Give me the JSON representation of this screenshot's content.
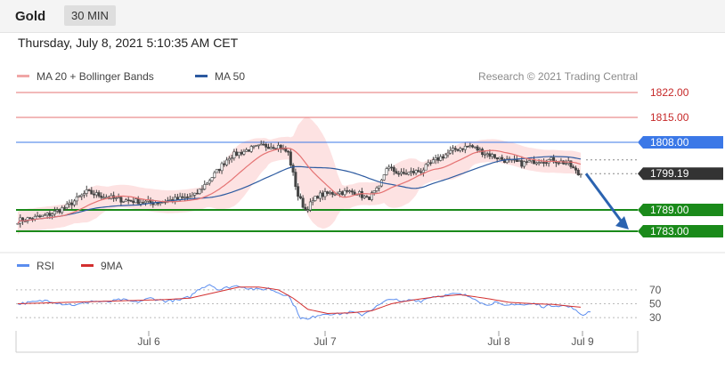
{
  "header": {
    "symbol": "Gold",
    "timeframe": "30 MIN"
  },
  "datetime": "Thursday, July 8, 2021 5:10:35 AM CET",
  "legend": {
    "ma20_label": "MA 20 + Bollinger Bands",
    "ma50_label": "MA 50",
    "credit": "Research © 2021 Trading Central",
    "rsi_label": "RSI",
    "ma9_label": "9MA"
  },
  "colors": {
    "ma20": "#e57373",
    "bollinger_fill": "#fde2e2",
    "ma50": "#2c5aa0",
    "resistance": "#e57373",
    "pivot": "#3b78e7",
    "support": "#1a8a1a",
    "current": "#333333",
    "arrow": "#2b63b0",
    "candle": "#444444",
    "rsi": "#5b8def",
    "rsi_ma": "#d32f2f"
  },
  "chart_data": [
    {
      "type": "candlestick",
      "title": "Gold",
      "timeframe": "30 MIN",
      "x_ticks": [
        "Jul 6",
        "Jul 7",
        "Jul 8",
        "Jul 9"
      ],
      "ylim": [
        1781,
        1824
      ],
      "levels": [
        {
          "value": 1822.0,
          "label": "1822.00",
          "kind": "resistance"
        },
        {
          "value": 1815.0,
          "label": "1815.00",
          "kind": "resistance"
        },
        {
          "value": 1808.0,
          "label": "1808.00",
          "kind": "pivot"
        },
        {
          "value": 1799.19,
          "label": "1799.19",
          "kind": "current"
        },
        {
          "value": 1789.0,
          "label": "1789.00",
          "kind": "support"
        },
        {
          "value": 1783.0,
          "label": "1783.00",
          "kind": "support"
        }
      ],
      "anchors": [
        [
          0,
          1786
        ],
        [
          9,
          1787
        ],
        [
          14,
          1788
        ],
        [
          20,
          1790
        ],
        [
          28,
          1794
        ],
        [
          40,
          1792
        ],
        [
          55,
          1791
        ],
        [
          65,
          1792
        ],
        [
          72,
          1793
        ],
        [
          76,
          1796
        ],
        [
          80,
          1799
        ],
        [
          86,
          1804
        ],
        [
          94,
          1806
        ],
        [
          100,
          1807
        ],
        [
          106,
          1807
        ],
        [
          110,
          1805
        ],
        [
          114,
          1793
        ],
        [
          117,
          1789
        ],
        [
          122,
          1793
        ],
        [
          130,
          1794
        ],
        [
          138,
          1794
        ],
        [
          142,
          1792
        ],
        [
          147,
          1795
        ],
        [
          150,
          1801
        ],
        [
          156,
          1799
        ],
        [
          164,
          1800
        ],
        [
          170,
          1803
        ],
        [
          178,
          1806
        ],
        [
          184,
          1807
        ],
        [
          190,
          1805
        ],
        [
          198,
          1803
        ],
        [
          205,
          1802
        ],
        [
          212,
          1803
        ],
        [
          218,
          1803
        ],
        [
          224,
          1802
        ],
        [
          228,
          1799
        ]
      ],
      "series": [
        {
          "name": "MA 20 + Bollinger Bands"
        },
        {
          "name": "MA 50"
        }
      ],
      "forecast": {
        "from": 1799.19,
        "to": 1783.0
      }
    },
    {
      "type": "line",
      "x_ticks": [
        "Jul 6",
        "Jul 7",
        "Jul 8",
        "Jul 9"
      ],
      "ylim": [
        20,
        80
      ],
      "y_ticks": [
        "70",
        "50",
        "30"
      ],
      "guides": [
        70,
        50,
        30
      ],
      "series": [
        {
          "name": "RSI",
          "anchors": [
            [
              0,
              50
            ],
            [
              6,
              52
            ],
            [
              12,
              55
            ],
            [
              18,
              50
            ],
            [
              24,
              48
            ],
            [
              30,
              54
            ],
            [
              36,
              52
            ],
            [
              42,
              56
            ],
            [
              48,
              52
            ],
            [
              54,
              58
            ],
            [
              60,
              54
            ],
            [
              66,
              55
            ],
            [
              70,
              60
            ],
            [
              74,
              72
            ],
            [
              78,
              78
            ],
            [
              82,
              70
            ],
            [
              86,
              74
            ],
            [
              90,
              76
            ],
            [
              94,
              72
            ],
            [
              98,
              70
            ],
            [
              102,
              72
            ],
            [
              106,
              66
            ],
            [
              110,
              62
            ],
            [
              113,
              44
            ],
            [
              115,
              30
            ],
            [
              118,
              27
            ],
            [
              122,
              34
            ],
            [
              126,
              36
            ],
            [
              130,
              35
            ],
            [
              136,
              38
            ],
            [
              140,
              34
            ],
            [
              144,
              42
            ],
            [
              148,
              50
            ],
            [
              152,
              58
            ],
            [
              156,
              52
            ],
            [
              160,
              56
            ],
            [
              164,
              54
            ],
            [
              168,
              60
            ],
            [
              174,
              62
            ],
            [
              178,
              64
            ],
            [
              182,
              62
            ],
            [
              186,
              58
            ],
            [
              190,
              48
            ],
            [
              194,
              52
            ],
            [
              198,
              46
            ],
            [
              202,
              50
            ],
            [
              206,
              48
            ],
            [
              210,
              50
            ],
            [
              214,
              46
            ],
            [
              218,
              48
            ],
            [
              222,
              47
            ],
            [
              226,
              44
            ],
            [
              228,
              36
            ],
            [
              230,
              34
            ],
            [
              233,
              40
            ]
          ]
        },
        {
          "name": "9MA",
          "anchors": [
            [
              0,
              50
            ],
            [
              20,
              52
            ],
            [
              40,
              54
            ],
            [
              60,
              56
            ],
            [
              70,
              58
            ],
            [
              80,
              66
            ],
            [
              90,
              74
            ],
            [
              98,
              74
            ],
            [
              106,
              70
            ],
            [
              112,
              58
            ],
            [
              118,
              42
            ],
            [
              126,
              36
            ],
            [
              136,
              37
            ],
            [
              144,
              40
            ],
            [
              152,
              50
            ],
            [
              160,
              55
            ],
            [
              170,
              60
            ],
            [
              180,
              63
            ],
            [
              190,
              58
            ],
            [
              200,
              52
            ],
            [
              210,
              50
            ],
            [
              218,
              49
            ],
            [
              226,
              46
            ],
            [
              229,
              45
            ]
          ]
        }
      ]
    }
  ]
}
